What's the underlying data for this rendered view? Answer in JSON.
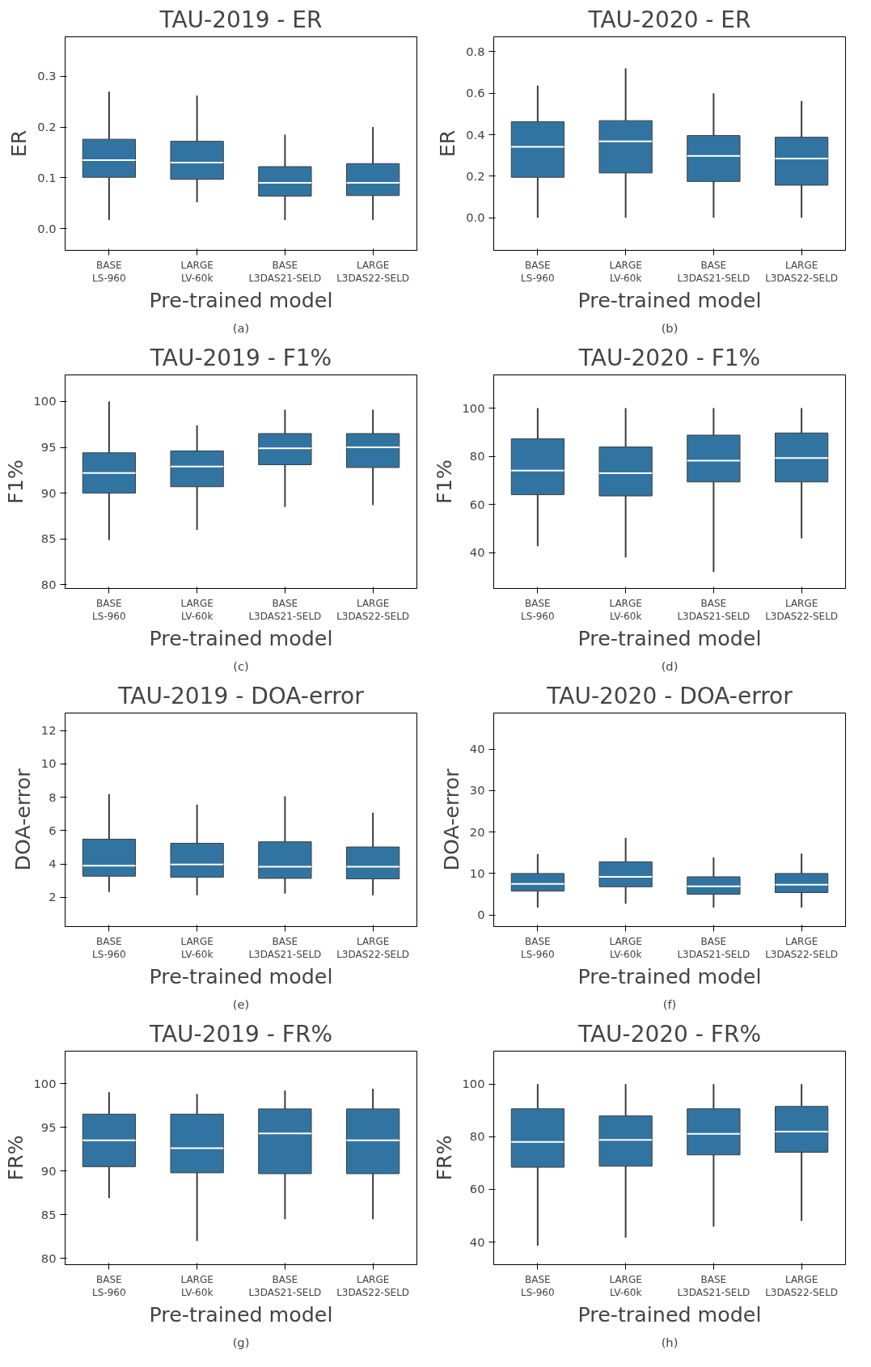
{
  "chart_data": [
    {
      "type": "box",
      "title": "TAU-2019 - ER",
      "xlabel": "Pre-trained model",
      "ylabel": "ER",
      "categories": [
        "BASE\nLS-960",
        "LARGE\nLV-60k",
        "BASE\nL3DAS21-SELD",
        "LARGE\nL3DAS22-SELD"
      ],
      "color": "#3274a1",
      "ylim": [
        -0.043,
        0.378
      ],
      "yticks": [
        {
          "value": 0,
          "label": "0.0"
        },
        0.1,
        0.2,
        0.3
      ],
      "annotations": [
        "(a)"
      ],
      "boxes": [
        {
          "low": 0.017,
          "q1": 0.101,
          "median": 0.135,
          "q3": 0.176,
          "high": 0.27
        },
        {
          "low": 0.052,
          "q1": 0.097,
          "median": 0.13,
          "q3": 0.172,
          "high": 0.262
        },
        {
          "low": 0.017,
          "q1": 0.064,
          "median": 0.09,
          "q3": 0.122,
          "high": 0.185
        },
        {
          "low": 0.017,
          "q1": 0.065,
          "median": 0.09,
          "q3": 0.128,
          "high": 0.2
        }
      ]
    },
    {
      "type": "box",
      "title": "TAU-2020 - ER",
      "xlabel": "Pre-trained model",
      "ylabel": "ER",
      "categories": [
        "BASE\nLS-960",
        "LARGE\nLV-60k",
        "BASE\nL3DAS21-SELD",
        "LARGE\nL3DAS22-SELD"
      ],
      "color": "#3274a1",
      "ylim": [
        -0.157,
        0.872
      ],
      "yticks": [
        {
          "value": 0,
          "label": "0.0"
        },
        0.2,
        0.4,
        0.6,
        0.8
      ],
      "annotations": [
        "(b)"
      ],
      "boxes": [
        {
          "low": 0,
          "q1": 0.195,
          "median": 0.342,
          "q3": 0.463,
          "high": 0.637
        },
        {
          "low": 0,
          "q1": 0.216,
          "median": 0.368,
          "q3": 0.468,
          "high": 0.72
        },
        {
          "low": 0,
          "q1": 0.175,
          "median": 0.298,
          "q3": 0.396,
          "high": 0.6
        },
        {
          "low": 0,
          "q1": 0.157,
          "median": 0.285,
          "q3": 0.388,
          "high": 0.563
        }
      ]
    },
    {
      "type": "box",
      "title": "TAU-2019 - F1%",
      "xlabel": "Pre-trained model",
      "ylabel": "F1%",
      "categories": [
        "BASE\nLS-960",
        "LARGE\nLV-60k",
        "BASE\nL3DAS21-SELD",
        "LARGE\nL3DAS22-SELD"
      ],
      "color": "#3274a1",
      "ylim": [
        79.6,
        102.9
      ],
      "yticks": [
        80,
        85,
        90,
        95,
        100
      ],
      "annotations": [
        "(c)"
      ],
      "boxes": [
        {
          "low": 84.9,
          "q1": 90,
          "median": 92.2,
          "q3": 94.4,
          "high": 100
        },
        {
          "low": 86,
          "q1": 90.7,
          "median": 92.9,
          "q3": 94.6,
          "high": 97.4
        },
        {
          "low": 88.5,
          "q1": 93.1,
          "median": 94.9,
          "q3": 96.5,
          "high": 99.1
        },
        {
          "low": 88.7,
          "q1": 92.8,
          "median": 95,
          "q3": 96.5,
          "high": 99.1
        }
      ]
    },
    {
      "type": "box",
      "title": "TAU-2020 - F1%",
      "xlabel": "Pre-trained model",
      "ylabel": "F1%",
      "categories": [
        "BASE\nLS-960",
        "LARGE\nLV-60k",
        "BASE\nL3DAS21-SELD",
        "LARGE\nL3DAS22-SELD"
      ],
      "color": "#3274a1",
      "ylim": [
        25.2,
        113.8
      ],
      "yticks": [
        40,
        60,
        80,
        100
      ],
      "annotations": [
        "(d)"
      ],
      "boxes": [
        {
          "low": 42.7,
          "q1": 64.1,
          "median": 74.1,
          "q3": 87.3,
          "high": 100
        },
        {
          "low": 38,
          "q1": 63.6,
          "median": 73,
          "q3": 83.9,
          "high": 100
        },
        {
          "low": 32,
          "q1": 69.4,
          "median": 78.2,
          "q3": 88.8,
          "high": 100
        },
        {
          "low": 46,
          "q1": 69.4,
          "median": 79.3,
          "q3": 89.7,
          "high": 100
        }
      ]
    },
    {
      "type": "box",
      "title": "TAU-2019 - DOA-error",
      "xlabel": "Pre-trained model",
      "ylabel": "DOA-error",
      "categories": [
        "BASE\nLS-960",
        "LARGE\nLV-60k",
        "BASE\nL3DAS21-SELD",
        "LARGE\nL3DAS22-SELD"
      ],
      "color": "#3274a1",
      "ylim": [
        0.25,
        13.05
      ],
      "yticks": [
        2,
        4,
        6,
        8,
        10,
        12
      ],
      "annotations": [
        "(e)"
      ],
      "boxes": [
        {
          "low": 2.32,
          "q1": 3.27,
          "median": 3.9,
          "q3": 5.49,
          "high": 8.19
        },
        {
          "low": 2.13,
          "q1": 3.21,
          "median": 3.97,
          "q3": 5.24,
          "high": 7.56
        },
        {
          "low": 2.22,
          "q1": 3.14,
          "median": 3.84,
          "q3": 5.33,
          "high": 8.06
        },
        {
          "low": 2.13,
          "q1": 3.11,
          "median": 3.84,
          "q3": 5.02,
          "high": 7.08
        }
      ]
    },
    {
      "type": "box",
      "title": "TAU-2020 - DOA-error",
      "xlabel": "Pre-trained model",
      "ylabel": "DOA-error",
      "categories": [
        "BASE\nLS-960",
        "LARGE\nLV-60k",
        "BASE\nL3DAS21-SELD",
        "LARGE\nL3DAS22-SELD"
      ],
      "color": "#3274a1",
      "ylim": [
        -2.8,
        48.7
      ],
      "yticks": [
        0,
        10,
        20,
        30,
        40
      ],
      "annotations": [
        "(f)"
      ],
      "boxes": [
        {
          "low": 1.8,
          "q1": 5.75,
          "median": 7.5,
          "q3": 10,
          "high": 14.7
        },
        {
          "low": 2.7,
          "q1": 6.8,
          "median": 9.2,
          "q3": 12.8,
          "high": 18.6
        },
        {
          "low": 1.8,
          "q1": 5,
          "median": 6.9,
          "q3": 9.2,
          "high": 13.9
        },
        {
          "low": 1.8,
          "q1": 5.4,
          "median": 7.3,
          "q3": 10,
          "high": 14.8
        }
      ]
    },
    {
      "type": "box",
      "title": "TAU-2019 - FR%",
      "xlabel": "Pre-trained model",
      "ylabel": "FR%",
      "categories": [
        "BASE\nLS-960",
        "LARGE\nLV-60k",
        "BASE\nL3DAS21-SELD",
        "LARGE\nL3DAS22-SELD"
      ],
      "color": "#3274a1",
      "ylim": [
        79.3,
        103.7
      ],
      "yticks": [
        80,
        85,
        90,
        95,
        100
      ],
      "annotations": [
        "(g)"
      ],
      "boxes": [
        {
          "low": 86.9,
          "q1": 90.5,
          "median": 93.5,
          "q3": 96.5,
          "high": 99
        },
        {
          "low": 82,
          "q1": 89.8,
          "median": 92.6,
          "q3": 96.5,
          "high": 98.8
        },
        {
          "low": 84.5,
          "q1": 89.7,
          "median": 94.3,
          "q3": 97.1,
          "high": 99.2
        },
        {
          "low": 84.5,
          "q1": 89.7,
          "median": 93.5,
          "q3": 97.1,
          "high": 99.4
        }
      ]
    },
    {
      "type": "box",
      "title": "TAU-2020 - FR%",
      "xlabel": "Pre-trained model",
      "ylabel": "FR%",
      "categories": [
        "BASE\nLS-960",
        "LARGE\nLV-60k",
        "BASE\nL3DAS21-SELD",
        "LARGE\nL3DAS22-SELD"
      ],
      "color": "#3274a1",
      "ylim": [
        31.4,
        112.5
      ],
      "yticks": [
        40,
        60,
        80,
        100
      ],
      "annotations": [
        "(h)"
      ],
      "boxes": [
        {
          "low": 38.6,
          "q1": 68.4,
          "median": 78,
          "q3": 90.6,
          "high": 100
        },
        {
          "low": 41.7,
          "q1": 68.8,
          "median": 78.8,
          "q3": 87.9,
          "high": 100
        },
        {
          "low": 45.8,
          "q1": 73.1,
          "median": 81.1,
          "q3": 90.6,
          "high": 100
        },
        {
          "low": 48,
          "q1": 74.1,
          "median": 81.9,
          "q3": 91.5,
          "high": 100
        }
      ]
    }
  ]
}
